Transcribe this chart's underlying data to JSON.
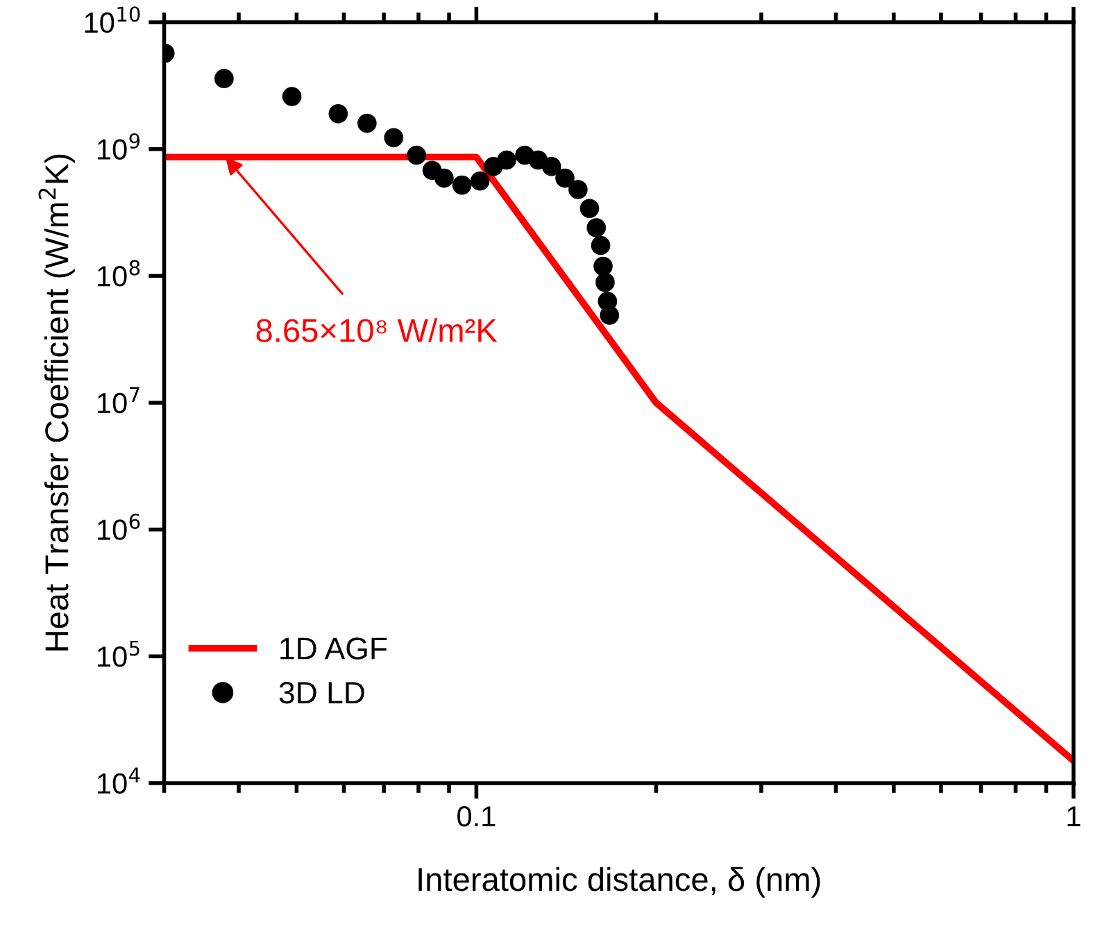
{
  "chart_data": {
    "type": "line",
    "xlabel": "Interatomic distance, δ (nm)",
    "ylabel": "Heat Transfer Coefficient (W/m$^{2}$K)",
    "log": "xy",
    "xlim": [
      0.03,
      1
    ],
    "xticks": [
      0.1,
      1
    ],
    "ylim": [
      10000,
      10000000000
    ],
    "yticks": [
      {
        "value": 10000,
        "label": "10$^{4}$"
      },
      {
        "value": 100000,
        "label": "10$^{5}$"
      },
      {
        "value": 1000000,
        "label": "10$^{6}$"
      },
      {
        "value": 10000000,
        "label": "10$^{7}$"
      },
      {
        "value": 100000000,
        "label": "10$^{8}$"
      },
      {
        "value": 1000000000,
        "label": "10$^{9}$"
      },
      {
        "value": 10000000000,
        "label": "10$^{10}$"
      }
    ],
    "grid": false,
    "legend": "bottom left",
    "annotations": [
      {
        "text": "8.65×10⁸ W/m²K",
        "x": 0.038,
        "y": 865000000
      }
    ],
    "series": [
      {
        "name": "1D AGF",
        "color": "#ff0000",
        "marker": "none",
        "x": [
          0.03,
          0.1,
          0.2,
          1
        ],
        "values": [
          865000000,
          865000000,
          10000000,
          15000
        ]
      },
      {
        "name": "3D LD",
        "type": "scatter",
        "color": "#000000",
        "marker": "circle",
        "x": [
          0.0301,
          0.0378,
          0.0491,
          0.0587,
          0.0656,
          0.0727,
          0.0794,
          0.0843,
          0.0883,
          0.0946,
          0.1014,
          0.1068,
          0.1124,
          0.1205,
          0.1269,
          0.1336,
          0.1407,
          0.148,
          0.1547,
          0.1588,
          0.1615,
          0.163,
          0.1643,
          0.1658,
          0.1671
        ],
        "values": [
          5700000000,
          3600000000,
          2600000000,
          1900000000,
          1600000000,
          1230000000,
          895000000,
          680000000,
          590000000,
          520000000,
          560000000,
          730000000,
          820000000,
          895000000,
          820000000,
          730000000,
          590000000,
          480000000,
          340000000,
          240000000,
          174000000,
          119000000,
          89000000,
          63000000,
          49000000
        ]
      }
    ]
  }
}
